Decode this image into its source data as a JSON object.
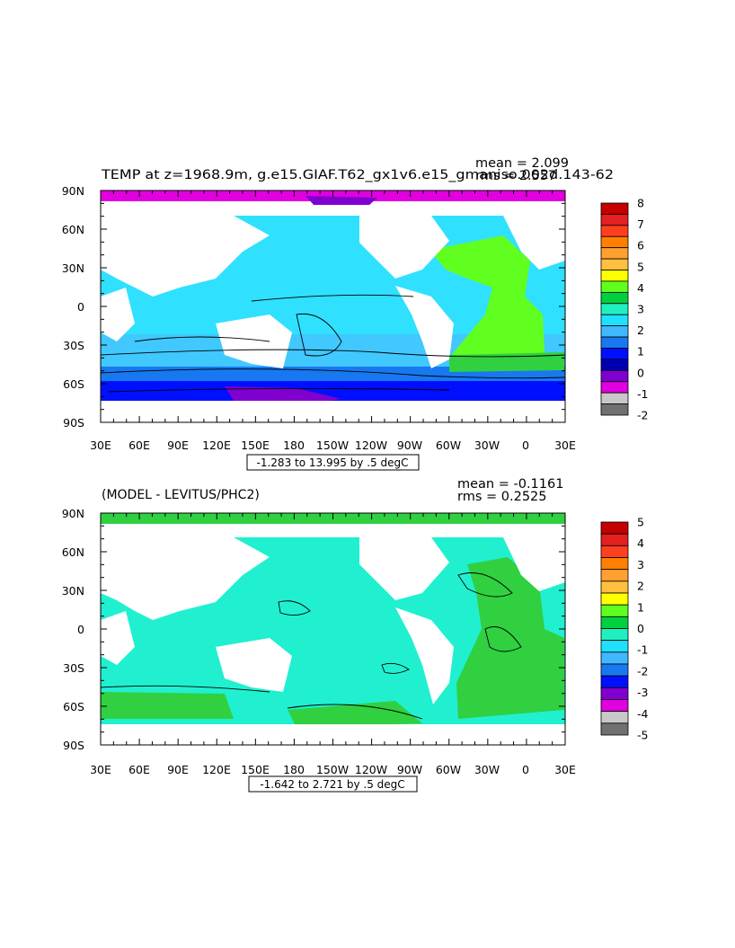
{
  "panels": [
    {
      "title": "TEMP at z=1968.9m, g.e15.GIAF.T62_gx1v6.e15_gmaniso.002d.143-62",
      "mean_text": "mean = 2.099",
      "rms_text": "rms = 2.557",
      "contour_info": "-1.283 to 13.995 by .5 degC",
      "colorbar_labels": [
        "8",
        "7",
        "6",
        "5",
        "4",
        "3",
        "2",
        "1",
        "0",
        "-1",
        "-2"
      ],
      "colorbar_colors": [
        "#C40000",
        "#E42020",
        "#FF4020",
        "#FF8000",
        "#FFA030",
        "#FFC040",
        "#FFFF00",
        "#60FF20",
        "#00D040",
        "#20F0C0",
        "#20E0FF",
        "#40B8FF",
        "#1878F0",
        "#0010FF",
        "#0000B0",
        "#8000D0",
        "#E000E0",
        "#C8C8C8",
        "#707070"
      ]
    },
    {
      "title": "(MODEL - LEVITUS/PHC2)",
      "mean_text": "mean = -0.1161",
      "rms_text": "rms = 0.2525",
      "contour_info": "-1.642 to 2.721 by .5 degC",
      "colorbar_labels": [
        "5",
        "4",
        "3",
        "2",
        "1",
        "0",
        "-1",
        "-2",
        "-3",
        "-4",
        "-5"
      ],
      "colorbar_colors": [
        "#C40000",
        "#E42020",
        "#FF4020",
        "#FF8000",
        "#FFA030",
        "#FFC040",
        "#FFFF00",
        "#60FF20",
        "#00D040",
        "#20F0C0",
        "#20E0FF",
        "#40B8FF",
        "#1878F0",
        "#0010FF",
        "#8000D0",
        "#E000E0",
        "#C8C8C8",
        "#707070"
      ]
    }
  ],
  "lat_labels": [
    "90N",
    "60N",
    "30N",
    "0",
    "30S",
    "60S",
    "90S"
  ],
  "lon_labels": [
    "30E",
    "60E",
    "90E",
    "120E",
    "150E",
    "180",
    "150W",
    "120W",
    "90W",
    "60W",
    "30W",
    "0",
    "30E"
  ],
  "colors": {
    "ocean_top": "#30E0FF",
    "ocean_top_deep": "#60B0FF",
    "ocean_top_south": "#1878F0",
    "ocean_top_antarctic": "#0010FF",
    "atlantic_top": "#60FF20",
    "atlantic_top_south": "#30D040",
    "arctic_top": "#E000E0",
    "ocean_bottom": "#20F0D0",
    "atlantic_bottom": "#30D040",
    "arctic_bottom": "#30D040",
    "land": "#FFFFFF"
  }
}
